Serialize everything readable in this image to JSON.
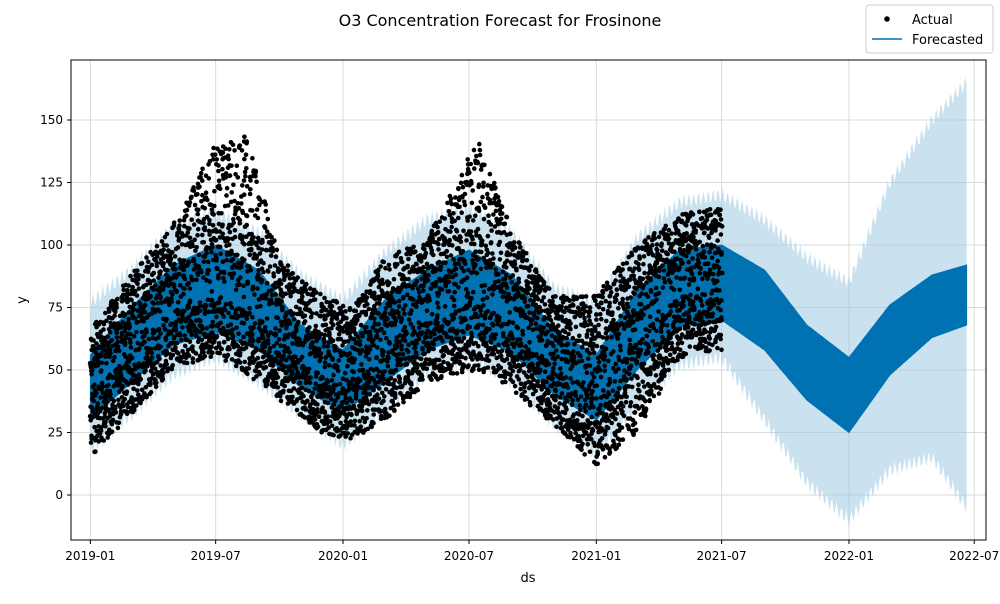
{
  "chart_data": {
    "type": "line",
    "title": "O3 Concentration Forecast for Frosinone",
    "xlabel": "ds",
    "ylabel": "y",
    "xlim": [
      "2018-12-04",
      "2022-07-18"
    ],
    "ylim": [
      -18,
      174
    ],
    "grid": true,
    "legend_placement": "top-right",
    "x_ticks": [
      "2019-01",
      "2019-07",
      "2020-01",
      "2020-07",
      "2021-01",
      "2021-07",
      "2022-01",
      "2022-07"
    ],
    "y_ticks": [
      0,
      25,
      50,
      75,
      100,
      125,
      150
    ],
    "colors": {
      "actual": "#000000",
      "forecast": "#0072B2",
      "interval": "#9ECAE1",
      "grid": "#d9d9d9"
    },
    "series": [
      {
        "name": "Actual",
        "kind": "scatter",
        "description_ranges": "daily observations 2019-01-01 to 2021-07-01, min/max envelope",
        "x": [
          "2019-01-01",
          "2019-03-01",
          "2019-05-01",
          "2019-07-01",
          "2019-08-15",
          "2019-10-01",
          "2019-12-01",
          "2020-01-15",
          "2020-03-01",
          "2020-05-01",
          "2020-07-15",
          "2020-09-01",
          "2020-11-01",
          "2021-01-01",
          "2021-03-01",
          "2021-05-01",
          "2021-07-01"
        ],
        "y_low": [
          15,
          32,
          50,
          56,
          48,
          38,
          25,
          22,
          30,
          45,
          50,
          42,
          28,
          12,
          25,
          55,
          58
        ],
        "y_high": [
          66,
          88,
          108,
          140,
          145,
          95,
          80,
          75,
          95,
          102,
          143,
          105,
          80,
          80,
          100,
          112,
          116
        ]
      },
      {
        "name": "Forecasted",
        "kind": "line",
        "x": [
          "2019-01-01",
          "2019-03-01",
          "2019-05-01",
          "2019-07-01",
          "2019-09-01",
          "2019-11-01",
          "2020-01-01",
          "2020-03-01",
          "2020-05-01",
          "2020-07-01",
          "2020-09-01",
          "2020-11-01",
          "2021-01-01",
          "2021-03-01",
          "2021-05-01",
          "2021-07-01",
          "2021-09-01",
          "2021-11-01",
          "2022-01-01",
          "2022-03-01",
          "2022-05-01",
          "2022-06-20"
        ],
        "y_low": [
          30,
          45,
          60,
          65,
          58,
          43,
          33,
          45,
          58,
          64,
          57,
          40,
          30,
          50,
          67,
          70,
          58,
          38,
          25,
          48,
          63,
          68
        ],
        "y_high": [
          56,
          75,
          92,
          100,
          90,
          68,
          58,
          78,
          90,
          98,
          88,
          66,
          56,
          82,
          98,
          100,
          90,
          68,
          55,
          76,
          88,
          92
        ],
        "interval_low": [
          18,
          32,
          48,
          55,
          45,
          32,
          20,
          33,
          48,
          55,
          45,
          28,
          16,
          35,
          52,
          55,
          30,
          5,
          -10,
          10,
          15,
          -5
        ],
        "interval_high": [
          77,
          90,
          108,
          113,
          105,
          88,
          78,
          97,
          110,
          115,
          105,
          83,
          77,
          103,
          117,
          120,
          110,
          95,
          85,
          125,
          150,
          165
        ]
      }
    ]
  }
}
